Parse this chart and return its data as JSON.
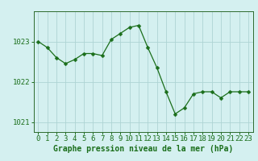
{
  "hours": [
    0,
    1,
    2,
    3,
    4,
    5,
    6,
    7,
    8,
    9,
    10,
    11,
    12,
    13,
    14,
    15,
    16,
    17,
    18,
    19,
    20,
    21,
    22,
    23
  ],
  "pressure": [
    1023.0,
    1022.85,
    1022.6,
    1022.45,
    1022.55,
    1022.7,
    1022.7,
    1022.65,
    1023.05,
    1023.2,
    1023.35,
    1023.4,
    1022.85,
    1022.35,
    1021.75,
    1021.2,
    1021.35,
    1021.7,
    1021.75,
    1021.75,
    1021.6,
    1021.75,
    1021.75,
    1021.75
  ],
  "line_color": "#1a6e1a",
  "marker": "D",
  "marker_size": 2.5,
  "background_color": "#d4f0f0",
  "grid_color": "#aed4d4",
  "axis_color": "#2d6a2d",
  "xlabel": "Graphe pression niveau de la mer (hPa)",
  "ylabel_ticks": [
    1021,
    1022,
    1023
  ],
  "xlim": [
    -0.5,
    23.5
  ],
  "ylim": [
    1020.75,
    1023.75
  ],
  "tick_label_color": "#1a6e1a",
  "xlabel_color": "#1a6e1a",
  "xlabel_fontsize": 7,
  "tick_fontsize": 6.5
}
